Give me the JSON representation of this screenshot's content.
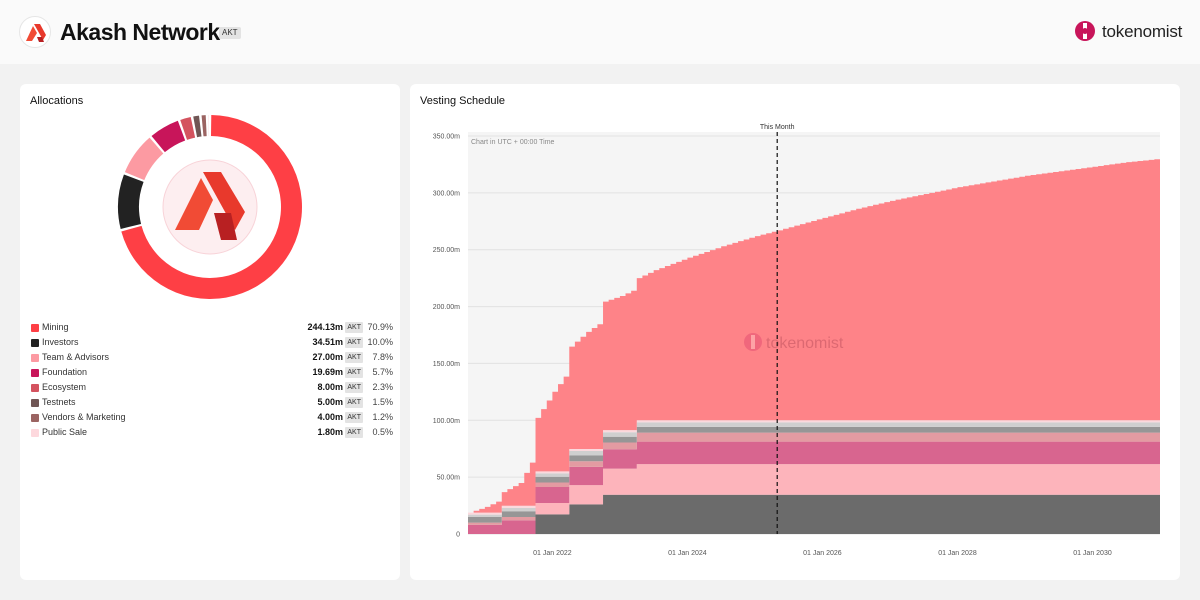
{
  "header": {
    "project_name": "Akash Network",
    "ticker": "AKT",
    "brand_name": "tokenomist",
    "logo_icon": "akash-logo-icon",
    "brand_icon": "tokenomist-logo-icon"
  },
  "allocations": {
    "title": "Allocations",
    "unit": "AKT",
    "items": [
      {
        "label": "Mining",
        "amount": "244.13m",
        "value": 244.13,
        "percent": "70.9%",
        "color": "#fe3f45"
      },
      {
        "label": "Investors",
        "amount": "34.51m",
        "value": 34.51,
        "percent": "10.0%",
        "color": "#222222"
      },
      {
        "label": "Team & Advisors",
        "amount": "27.00m",
        "value": 27.0,
        "percent": "7.8%",
        "color": "#fc9aa2"
      },
      {
        "label": "Foundation",
        "amount": "19.69m",
        "value": 19.69,
        "percent": "5.7%",
        "color": "#c8155a"
      },
      {
        "label": "Ecosystem",
        "amount": "8.00m",
        "value": 8.0,
        "percent": "2.3%",
        "color": "#d4535f"
      },
      {
        "label": "Testnets",
        "amount": "5.00m",
        "value": 5.0,
        "percent": "1.5%",
        "color": "#705655"
      },
      {
        "label": "Vendors & Marketing",
        "amount": "4.00m",
        "value": 4.0,
        "percent": "1.2%",
        "color": "#9b6462"
      },
      {
        "label": "Public Sale",
        "amount": "1.80m",
        "value": 1.8,
        "percent": "0.5%",
        "color": "#fdd8dd"
      }
    ]
  },
  "vesting": {
    "title": "Vesting Schedule",
    "note": "Chart in UTC + 00:00 Time",
    "marker_label": "This Month",
    "watermark": "tokenomist"
  },
  "chart_data": {
    "type": "area",
    "stacked": true,
    "title": "Vesting Schedule",
    "xlabel": "",
    "ylabel": "",
    "x_range": [
      "2020-09",
      "2030-12"
    ],
    "ylim": [
      0,
      350
    ],
    "y_ticks": [
      0,
      50,
      100,
      150,
      200,
      250,
      300,
      350
    ],
    "y_tick_labels": [
      "0",
      "50.00m",
      "100.00m",
      "150.00m",
      "200.00m",
      "250.00m",
      "300.00m",
      "350.00m"
    ],
    "x_ticks": [
      2022,
      2024,
      2026,
      2028,
      2030
    ],
    "x_tick_labels": [
      "01 Jan 2022",
      "01 Jan 2024",
      "01 Jan 2026",
      "01 Jan 2028",
      "01 Jan 2030"
    ],
    "marker": {
      "label": "This Month",
      "x": 2025.33
    },
    "series": [
      {
        "name": "Investors",
        "color": "#6b6b6b",
        "points": [
          [
            2020.75,
            0
          ],
          [
            2021.75,
            0
          ],
          [
            2021.75,
            17.3
          ],
          [
            2022.25,
            17.3
          ],
          [
            2022.25,
            26
          ],
          [
            2022.75,
            26
          ],
          [
            2022.75,
            34.5
          ],
          [
            2031.0,
            34.5
          ]
        ]
      },
      {
        "name": "Team & Advisors",
        "color": "#fdb4bb",
        "points": [
          [
            2020.75,
            0
          ],
          [
            2021.75,
            0
          ],
          [
            2021.75,
            10
          ],
          [
            2022.25,
            10
          ],
          [
            2022.25,
            17
          ],
          [
            2022.75,
            17
          ],
          [
            2022.75,
            23
          ],
          [
            2023.25,
            23
          ],
          [
            2023.25,
            27
          ],
          [
            2031.0,
            27
          ]
        ]
      },
      {
        "name": "Foundation",
        "color": "#d8658f",
        "points": [
          [
            2020.75,
            8
          ],
          [
            2021.25,
            8
          ],
          [
            2021.25,
            12
          ],
          [
            2021.75,
            12
          ],
          [
            2021.75,
            14
          ],
          [
            2022.25,
            14
          ],
          [
            2022.25,
            16
          ],
          [
            2022.75,
            16
          ],
          [
            2022.75,
            17
          ],
          [
            2023.25,
            17
          ],
          [
            2023.25,
            19.7
          ],
          [
            2031.0,
            19.7
          ]
        ]
      },
      {
        "name": "Ecosystem",
        "color": "#e39ba2",
        "points": [
          [
            2020.75,
            2
          ],
          [
            2021.25,
            2
          ],
          [
            2021.25,
            3
          ],
          [
            2021.75,
            3
          ],
          [
            2021.75,
            4
          ],
          [
            2022.25,
            4
          ],
          [
            2022.25,
            5
          ],
          [
            2022.75,
            5
          ],
          [
            2022.75,
            6
          ],
          [
            2023.25,
            6
          ],
          [
            2023.25,
            8
          ],
          [
            2031.0,
            8
          ]
        ]
      },
      {
        "name": "Testnets",
        "color": "#969696",
        "points": [
          [
            2020.75,
            5
          ],
          [
            2031.0,
            5
          ]
        ]
      },
      {
        "name": "Vendors & Marketing",
        "color": "#cfcfcf",
        "points": [
          [
            2020.75,
            2
          ],
          [
            2021.25,
            2
          ],
          [
            2021.25,
            3
          ],
          [
            2022.25,
            3
          ],
          [
            2022.25,
            4
          ],
          [
            2031.0,
            4
          ]
        ]
      },
      {
        "name": "Public Sale",
        "color": "#fbd9dd",
        "points": [
          [
            2020.75,
            1.8
          ],
          [
            2031.0,
            1.8
          ]
        ]
      },
      {
        "name": "Mining",
        "color": "#fe8388",
        "points": [
          [
            2020.75,
            0
          ],
          [
            2021.0,
            5
          ],
          [
            2021.25,
            12
          ],
          [
            2021.5,
            20
          ],
          [
            2021.75,
            47
          ],
          [
            2022.0,
            70
          ],
          [
            2022.25,
            90
          ],
          [
            2022.5,
            103
          ],
          [
            2022.75,
            113
          ],
          [
            2023.0,
            118
          ],
          [
            2023.25,
            125
          ],
          [
            2023.5,
            132
          ],
          [
            2024.0,
            143
          ],
          [
            2024.5,
            153
          ],
          [
            2025.0,
            162
          ],
          [
            2025.33,
            167
          ],
          [
            2026.0,
            178
          ],
          [
            2026.5,
            186
          ],
          [
            2027.0,
            193
          ],
          [
            2027.5,
            199
          ],
          [
            2028.0,
            205
          ],
          [
            2028.5,
            210
          ],
          [
            2029.0,
            215
          ],
          [
            2029.5,
            219
          ],
          [
            2030.0,
            223
          ],
          [
            2030.5,
            227
          ],
          [
            2031.0,
            230
          ]
        ]
      }
    ]
  }
}
